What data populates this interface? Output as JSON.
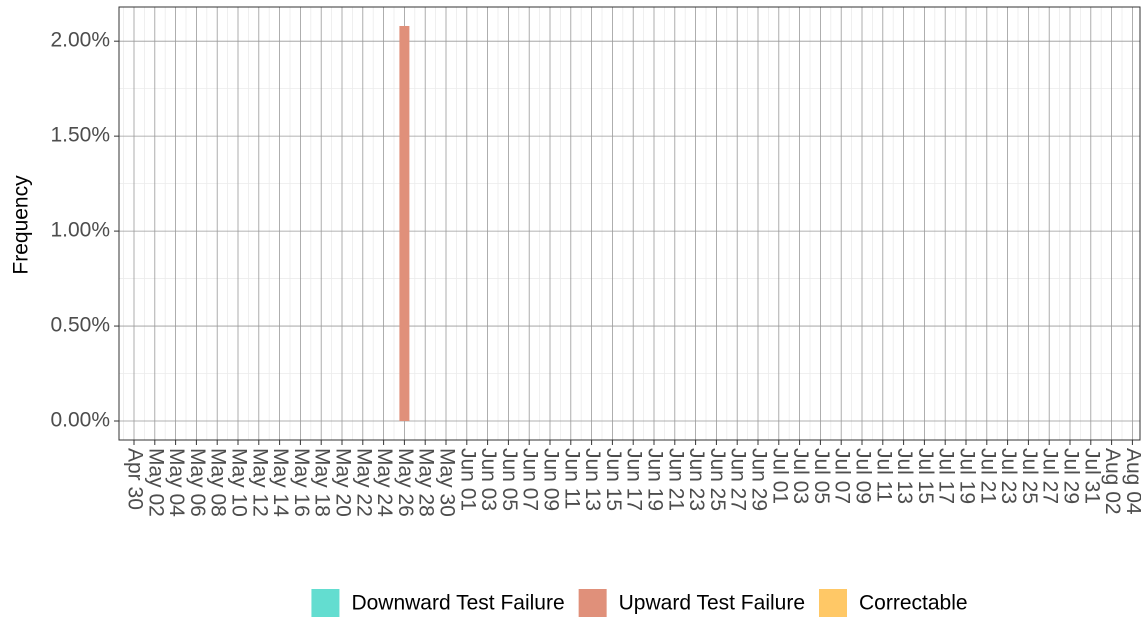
{
  "chart_data": {
    "type": "bar",
    "y_label": "Frequency",
    "categories": [
      "Apr 30",
      "May 02",
      "May 04",
      "May 06",
      "May 08",
      "May 10",
      "May 12",
      "May 14",
      "May 16",
      "May 18",
      "May 20",
      "May 22",
      "May 24",
      "May 26",
      "May 28",
      "May 30",
      "Jun 01",
      "Jun 03",
      "Jun 05",
      "Jun 07",
      "Jun 09",
      "Jun 11",
      "Jun 13",
      "Jun 15",
      "Jun 17",
      "Jun 19",
      "Jun 21",
      "Jun 23",
      "Jun 25",
      "Jun 27",
      "Jun 29",
      "Jul 01",
      "Jul 03",
      "Jul 05",
      "Jul 07",
      "Jul 09",
      "Jul 11",
      "Jul 13",
      "Jul 15",
      "Jul 17",
      "Jul 19",
      "Jul 21",
      "Jul 23",
      "Jul 25",
      "Jul 27",
      "Jul 29",
      "Jul 31",
      "Aug 02",
      "Aug 04"
    ],
    "series": [
      {
        "name": "Downward Test Failure",
        "color": "#63ddd0",
        "values": [
          null,
          null,
          null,
          null,
          null,
          null,
          null,
          null,
          null,
          null,
          null,
          null,
          null,
          null,
          null,
          null,
          null,
          null,
          null,
          null,
          null,
          null,
          null,
          null,
          null,
          null,
          null,
          null,
          null,
          null,
          null,
          null,
          null,
          null,
          null,
          null,
          null,
          null,
          null,
          null,
          null,
          null,
          null,
          null,
          null,
          null,
          null,
          null,
          null
        ]
      },
      {
        "name": "Upward Test Failure",
        "color": "#e0907a",
        "values": [
          null,
          null,
          null,
          null,
          null,
          null,
          null,
          null,
          null,
          null,
          null,
          null,
          null,
          2.08,
          null,
          null,
          null,
          null,
          null,
          null,
          null,
          null,
          null,
          null,
          null,
          null,
          null,
          null,
          null,
          null,
          null,
          null,
          null,
          null,
          null,
          null,
          null,
          null,
          null,
          null,
          null,
          null,
          null,
          null,
          null,
          null,
          null,
          null,
          null
        ]
      },
      {
        "name": "Correctable",
        "color": "#ffc866",
        "values": [
          null,
          null,
          null,
          null,
          null,
          null,
          null,
          null,
          null,
          null,
          null,
          null,
          null,
          null,
          null,
          null,
          null,
          null,
          null,
          null,
          null,
          null,
          null,
          null,
          null,
          null,
          null,
          null,
          null,
          null,
          null,
          null,
          null,
          null,
          null,
          null,
          null,
          null,
          null,
          null,
          null,
          null,
          null,
          null,
          null,
          null,
          null,
          null,
          null
        ]
      }
    ],
    "ylim": [
      -0.1,
      2.18
    ],
    "yticks": [
      {
        "value": 0,
        "label": "0.00%"
      },
      {
        "value": 0.5,
        "label": "0.50%"
      },
      {
        "value": 1,
        "label": "1.00%"
      },
      {
        "value": 1.5,
        "label": "1.50%"
      },
      {
        "value": 2,
        "label": "2.00%"
      }
    ],
    "grid": true,
    "legend": "bottom"
  }
}
